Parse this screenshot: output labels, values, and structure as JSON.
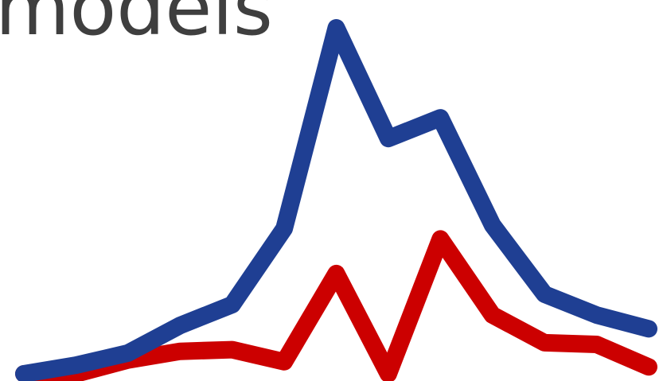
{
  "headline": "models",
  "chart_data": {
    "type": "line",
    "title": "",
    "xlabel": "",
    "ylabel": "",
    "x": [
      1,
      2,
      3,
      4,
      5,
      6,
      7,
      8,
      9,
      10,
      11,
      12,
      13
    ],
    "xlim": [
      1,
      13
    ],
    "ylim": [
      0,
      100
    ],
    "grid": false,
    "legend": "none",
    "series": [
      {
        "color": "#1f3f93",
        "values": [
          0,
          2.5,
          6,
          14,
          20,
          42,
          100,
          68,
          74,
          43,
          23,
          17,
          13
        ]
      },
      {
        "color": "#cc0000",
        "values": [
          0,
          0,
          4,
          6.5,
          7,
          3.5,
          29,
          0,
          39,
          17,
          9,
          8.5,
          2
        ]
      }
    ]
  }
}
